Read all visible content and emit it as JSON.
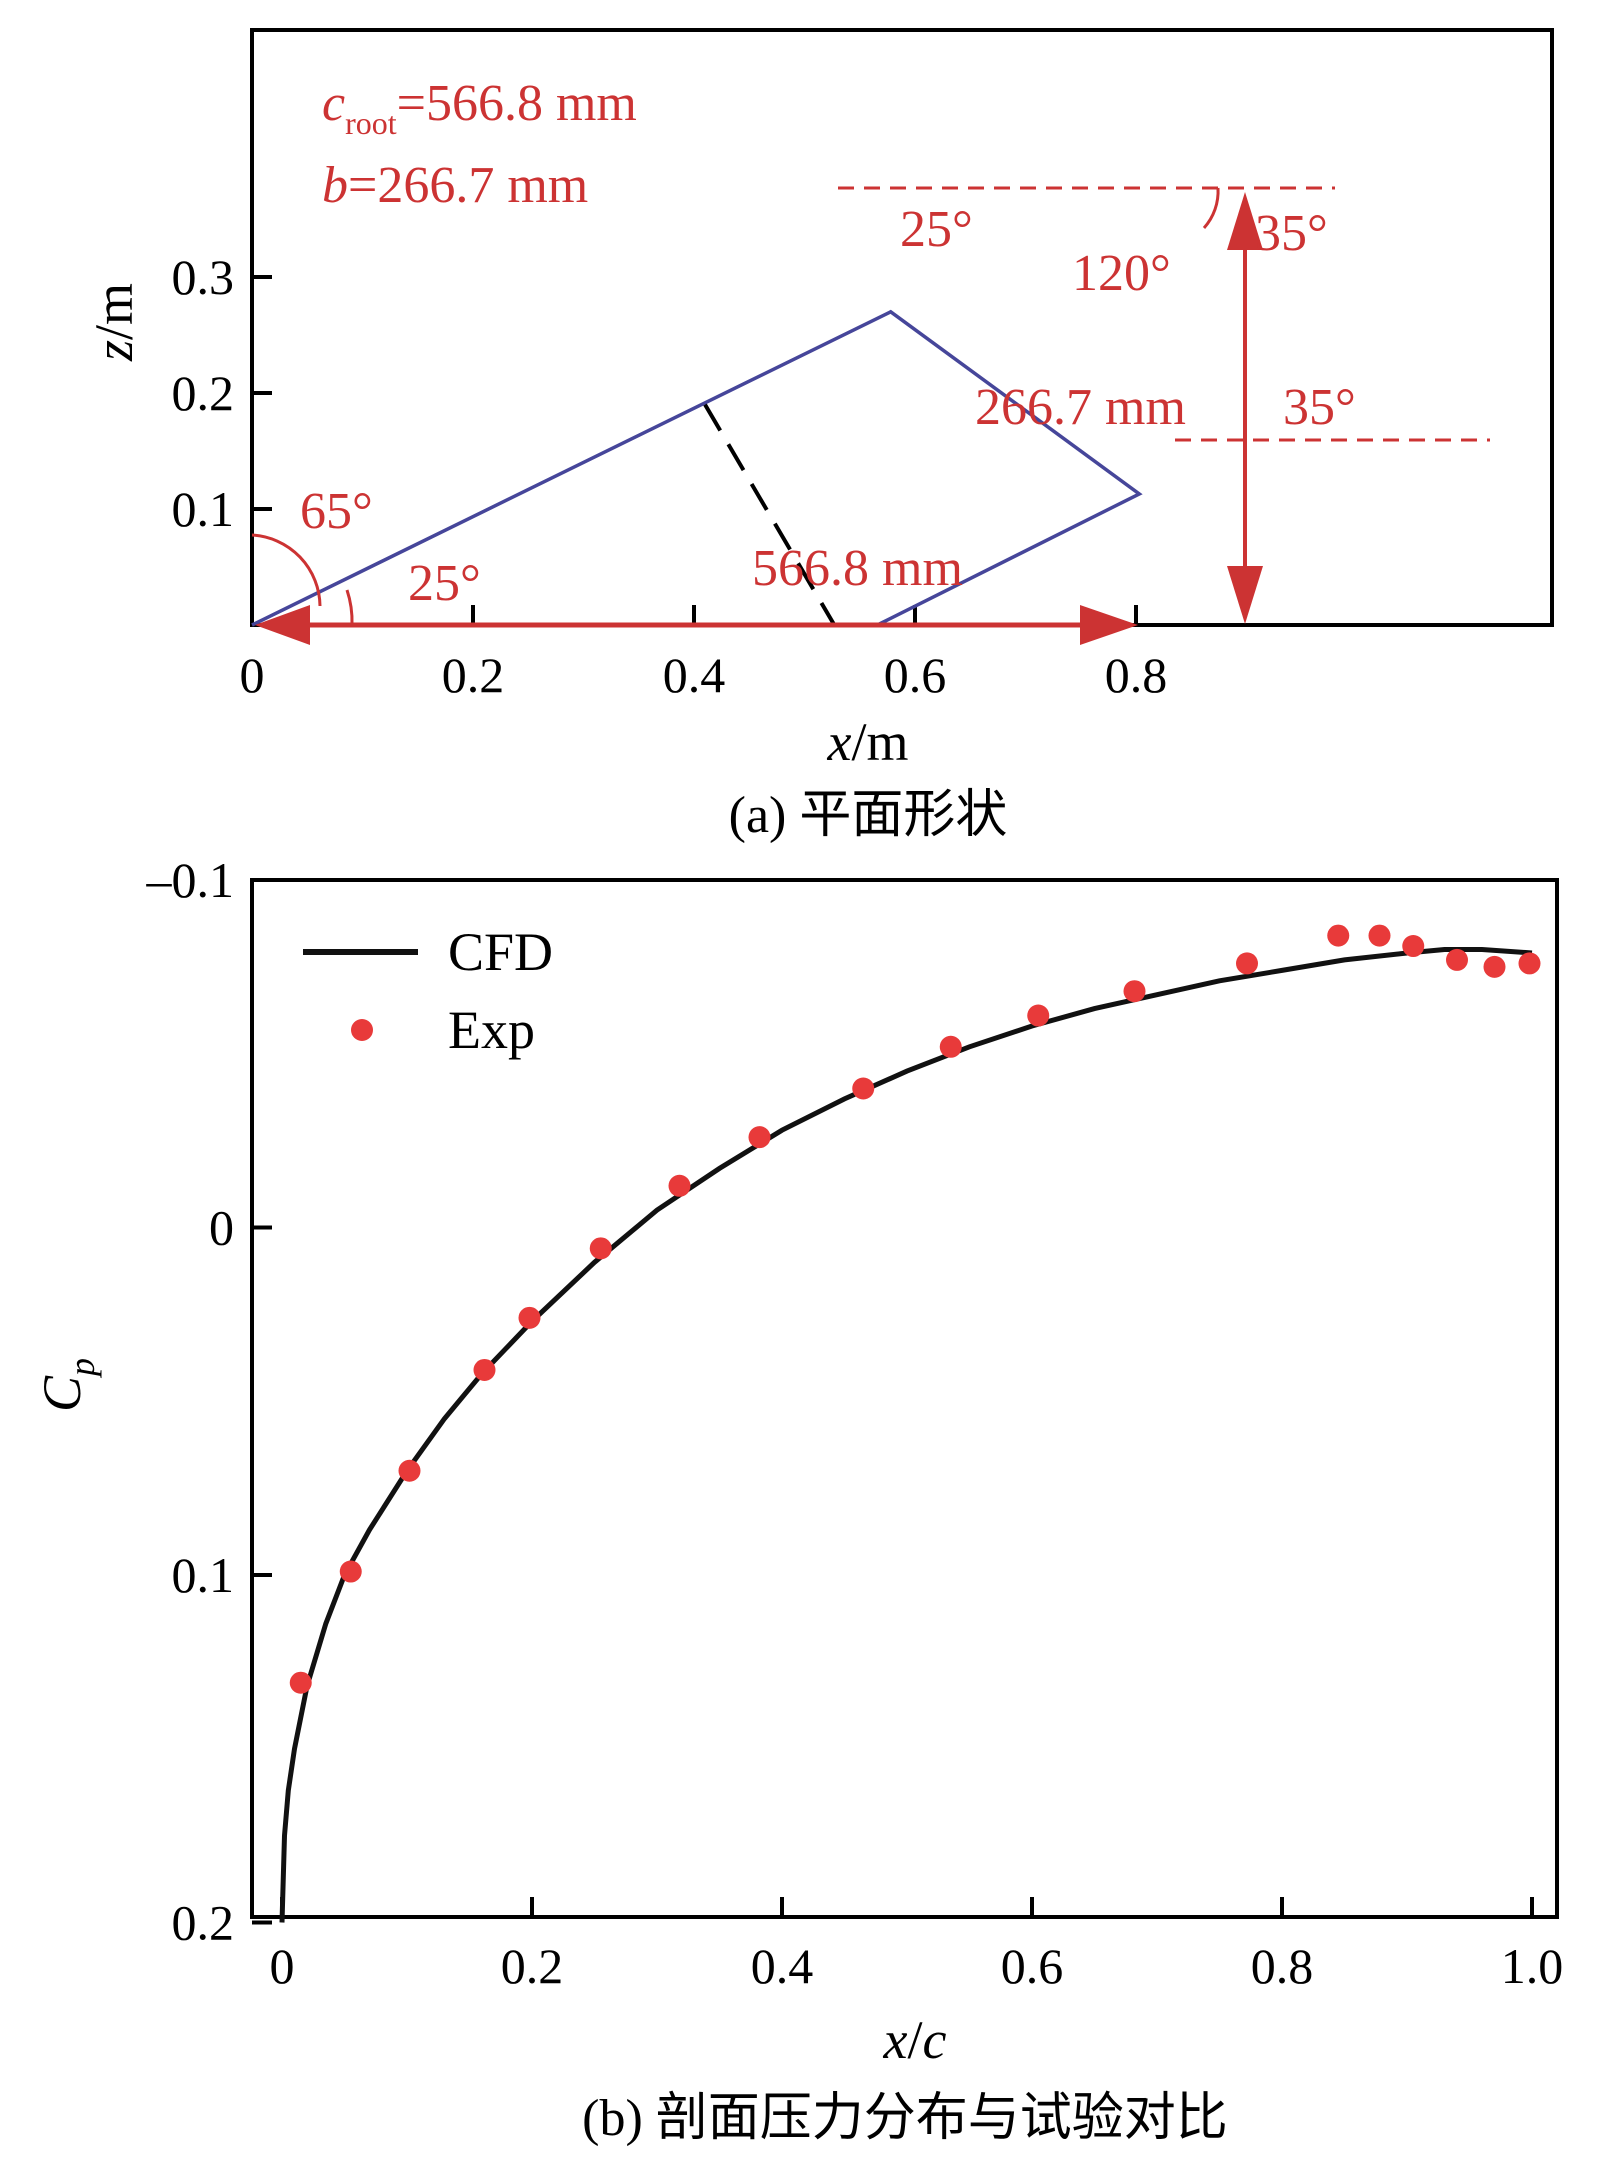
{
  "colors": {
    "outline": "#46469a",
    "annotation": "#cc3333",
    "cfd": "#111111",
    "exp": "#e83a3a"
  },
  "chart_data": [
    {
      "type": "diagram",
      "xlabel": {
        "var": "x",
        "unit": "/m"
      },
      "ylabel": {
        "var": "z",
        "unit": "/m"
      },
      "xlim": [
        0,
        0.85
      ],
      "ylim": [
        0,
        0.36
      ],
      "xticks": [
        "0",
        "0.2",
        "0.4",
        "0.6",
        "0.8"
      ],
      "yticks": [
        "0.1",
        "0.2",
        "0.3"
      ],
      "caption": "(a) 平面形状",
      "outline": [
        [
          0,
          0
        ],
        [
          0.578,
          0.27
        ],
        [
          0.803,
          0.113
        ],
        [
          0.566,
          0
        ]
      ],
      "section_line": [
        [
          0.41,
          0.19
        ],
        [
          0.527,
          0
        ]
      ],
      "params": {
        "c_sym": "c",
        "c_sub": "root",
        "c_val": "=566.8 mm",
        "b_sym": "b",
        "b_val": "=266.7 mm"
      },
      "annotations": {
        "angle_65": "65°",
        "angle_25_root": "25°",
        "angle_25_le": "25°",
        "angle_120": "120°",
        "angle_35_tip": "35°",
        "angle_35_te": "35°",
        "dim_span": "266.7 mm",
        "dim_chord": "566.8 mm"
      }
    },
    {
      "type": "line",
      "xlabel": {
        "var": "x",
        "sep": "/",
        "var2": "c"
      },
      "ylabel": {
        "var": "C",
        "sub": "p"
      },
      "xlim": [
        -0.04,
        1.02
      ],
      "ylim": [
        -0.1,
        0.2
      ],
      "y_inverted": true,
      "xticks": [
        "0",
        "0.2",
        "0.4",
        "0.6",
        "0.8",
        "1.0"
      ],
      "yticks": [
        "–0.1",
        "0",
        "0.1",
        "0.2"
      ],
      "caption": "(b) 剖面压力分布与试验对比",
      "legend": "top-left",
      "series": [
        {
          "name": "CFD",
          "style": "line",
          "x": [
            0.0,
            0.002,
            0.005,
            0.01,
            0.02,
            0.035,
            0.05,
            0.07,
            0.1,
            0.13,
            0.16,
            0.2,
            0.25,
            0.3,
            0.35,
            0.4,
            0.45,
            0.5,
            0.55,
            0.6,
            0.65,
            0.7,
            0.75,
            0.8,
            0.85,
            0.9,
            0.93,
            0.96,
            1.0
          ],
          "y": [
            0.2,
            0.175,
            0.162,
            0.15,
            0.132,
            0.114,
            0.1,
            0.087,
            0.07,
            0.055,
            0.042,
            0.027,
            0.01,
            -0.005,
            -0.017,
            -0.028,
            -0.037,
            -0.045,
            -0.052,
            -0.058,
            -0.063,
            -0.067,
            -0.071,
            -0.074,
            -0.077,
            -0.079,
            -0.08,
            -0.08,
            -0.079
          ]
        },
        {
          "name": "Exp",
          "style": "markers",
          "x": [
            0.015,
            0.055,
            0.102,
            0.162,
            0.198,
            0.255,
            0.318,
            0.382,
            0.465,
            0.535,
            0.605,
            0.682,
            0.772,
            0.845,
            0.878,
            0.905,
            0.94,
            0.97,
            0.998
          ],
          "y": [
            0.131,
            0.099,
            0.07,
            0.041,
            0.026,
            0.006,
            -0.012,
            -0.026,
            -0.04,
            -0.052,
            -0.061,
            -0.068,
            -0.076,
            -0.084,
            -0.084,
            -0.081,
            -0.077,
            -0.075,
            -0.076
          ]
        }
      ]
    }
  ]
}
